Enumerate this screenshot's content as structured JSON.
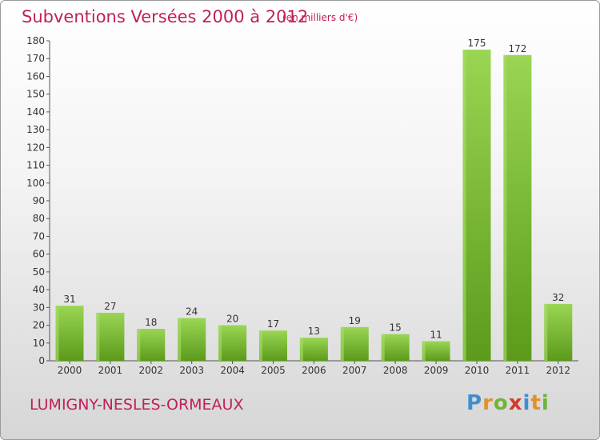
{
  "title": "Subventions Versées 2000 à 2012",
  "subtitle": "(en milliers d'€)",
  "commune": "LUMIGNY-NESLES-ORMEAUX",
  "logo": {
    "p": "P",
    "r": "r",
    "o": "o",
    "x": "x",
    "i": "i",
    "t": "t",
    "i2": "i"
  },
  "colors": {
    "bar_light": "#8fd14a",
    "bar_dark": "#5e9e1e",
    "title": "#c0205c"
  },
  "chart_data": {
    "type": "bar",
    "title": "Subventions Versées 2000 à 2012",
    "subtitle": "(en milliers d'€)",
    "categories": [
      "2000",
      "2001",
      "2002",
      "2003",
      "2004",
      "2005",
      "2006",
      "2007",
      "2008",
      "2009",
      "2010",
      "2011",
      "2012"
    ],
    "values": [
      31,
      27,
      18,
      24,
      20,
      17,
      13,
      19,
      15,
      11,
      175,
      172,
      32
    ],
    "ylim": [
      0,
      180
    ],
    "yticks": [
      0,
      10,
      20,
      30,
      40,
      50,
      60,
      70,
      80,
      90,
      100,
      110,
      120,
      130,
      140,
      150,
      160,
      170,
      180
    ],
    "xlabel": "",
    "ylabel": "",
    "grid": false,
    "data_labels": true
  }
}
